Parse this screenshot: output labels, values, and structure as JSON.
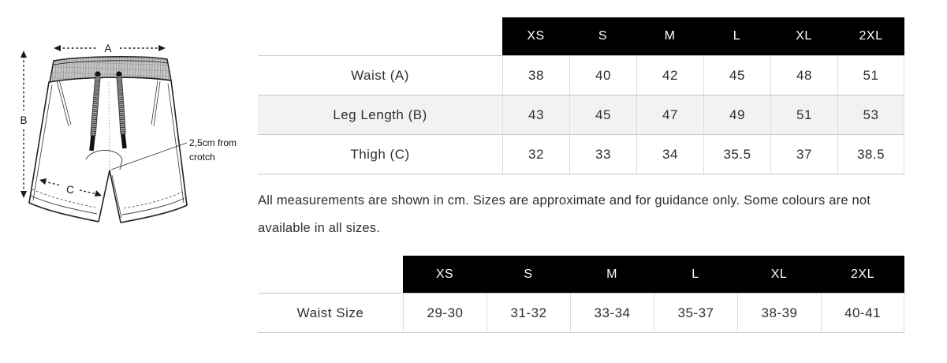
{
  "diagram": {
    "labels": {
      "a": "A",
      "b": "B",
      "c": "C"
    },
    "annotation": {
      "line1": "2,5cm from",
      "line2": "crotch"
    }
  },
  "size_table": {
    "columns": [
      "XS",
      "S",
      "M",
      "L",
      "XL",
      "2XL"
    ],
    "rows": [
      {
        "label": "Waist (A)",
        "values": [
          "38",
          "40",
          "42",
          "45",
          "48",
          "51"
        ]
      },
      {
        "label": "Leg Length (B)",
        "values": [
          "43",
          "45",
          "47",
          "49",
          "51",
          "53"
        ]
      },
      {
        "label": "Thigh (C)",
        "values": [
          "32",
          "33",
          "34",
          "35.5",
          "37",
          "38.5"
        ]
      }
    ]
  },
  "note": "All measurements are shown in cm. Sizes are approximate and for guidance only. Some colours are not available in all sizes.",
  "waist_table": {
    "columns": [
      "XS",
      "S",
      "M",
      "L",
      "XL",
      "2XL"
    ],
    "rows": [
      {
        "label": "Waist Size",
        "values": [
          "29-30",
          "31-32",
          "33-34",
          "35-37",
          "38-39",
          "40-41"
        ]
      }
    ]
  },
  "colors": {
    "header_bg": "#000000",
    "header_text": "#ffffff",
    "alt_row_bg": "#f2f2f2",
    "row_border": "#c9c9c9",
    "cell_border": "#dcdcdc",
    "text": "#2e2e2e"
  }
}
